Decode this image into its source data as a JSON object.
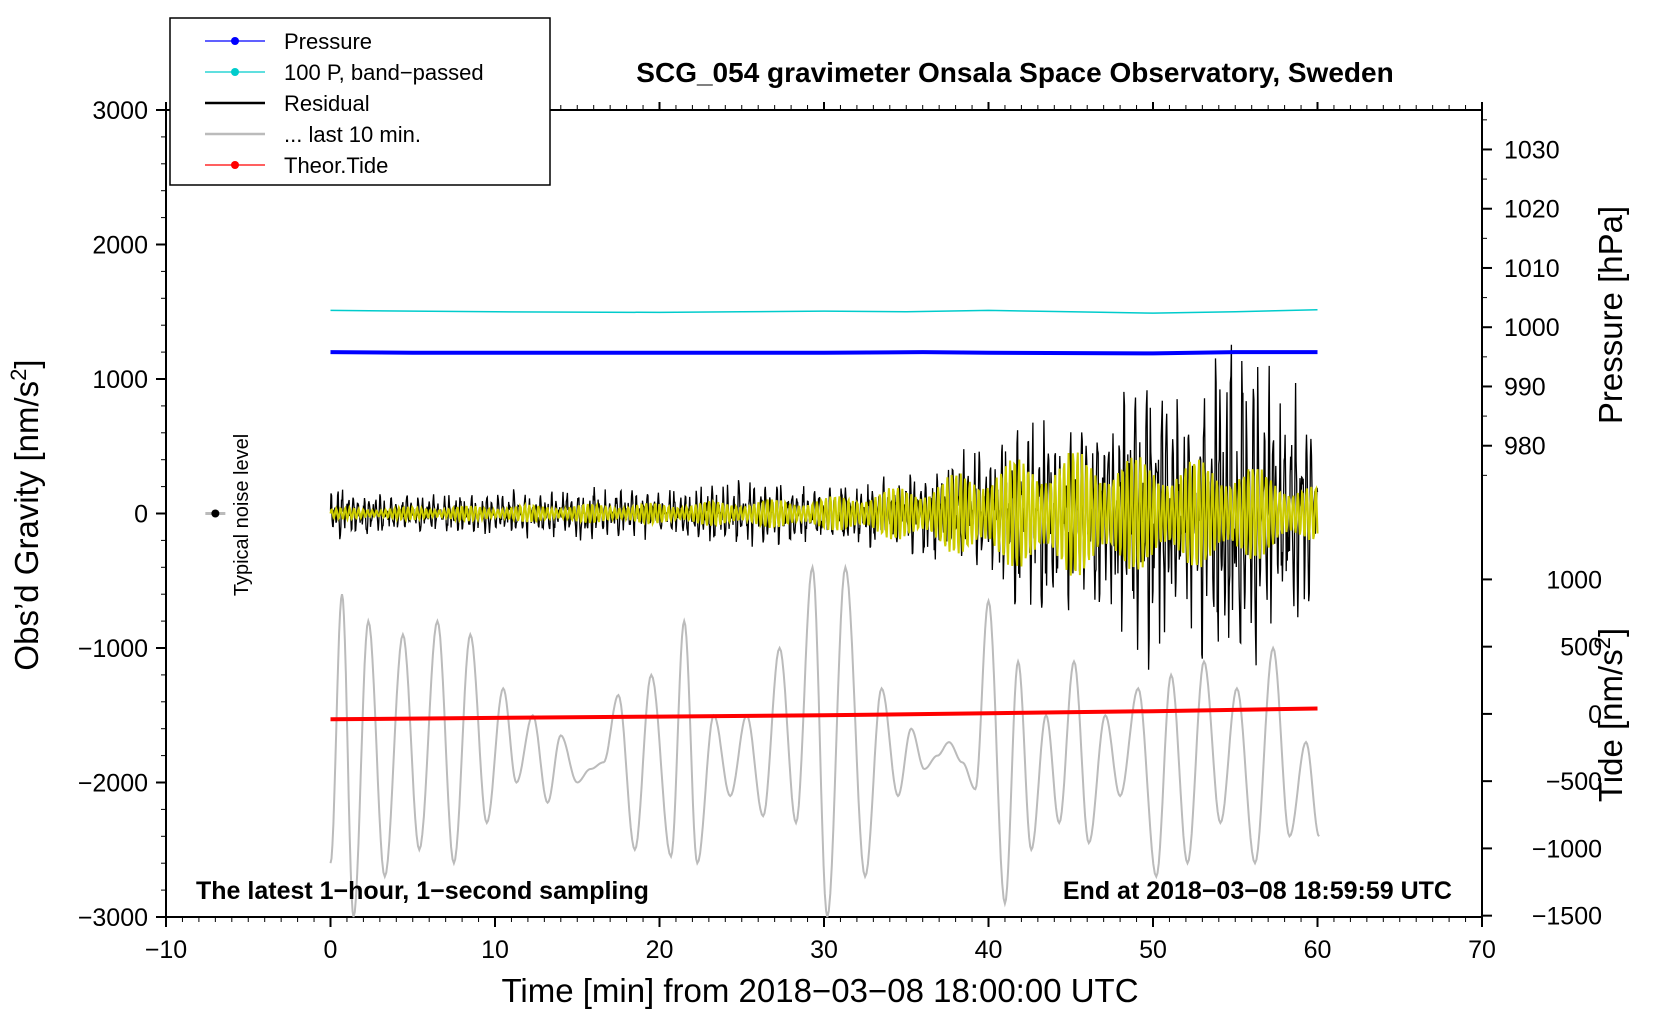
{
  "chart_data": {
    "type": "line",
    "title": "SCG_054 gravimeter Onsala Space Observatory, Sweden",
    "xlabel": "Time [min] from 2018−03−08 18:00:00 UTC",
    "ylabel_left": "Obs’d Gravity [nm/s",
    "ylabel_left_sup": "2",
    "ylabel_left_close": "]",
    "ylabel_right_pressure": "Pressure [hPa]",
    "ylabel_right_tide": "Tide [nm/s",
    "ylabel_right_tide_sup": "2",
    "ylabel_right_tide_close": "]",
    "xlim": [
      -10,
      70
    ],
    "ylim": [
      -3000,
      3000
    ],
    "x_ticks": [
      -10,
      0,
      10,
      20,
      30,
      40,
      50,
      60,
      70
    ],
    "x_tick_labels": [
      "−10",
      "0",
      "10",
      "20",
      "30",
      "40",
      "50",
      "60",
      "70"
    ],
    "y_ticks": [
      -3000,
      -2000,
      -1000,
      0,
      1000,
      2000,
      3000
    ],
    "y_tick_labels": [
      "−3000",
      "−2000",
      "−1000",
      "0",
      "1000",
      "2000",
      "3000"
    ],
    "pressure_axis": {
      "ticks": [
        980,
        990,
        1000,
        1010,
        1020,
        1030
      ],
      "tick_labels": [
        "980",
        "990",
        "1000",
        "1010",
        "1020",
        "1030"
      ],
      "hpa_per_100_grav": 2.27,
      "ref_hpa": 1000,
      "ref_grav": 1385
    },
    "tide_axis": {
      "ticks": [
        -1500,
        -1000,
        -500,
        0,
        500,
        1000
      ],
      "tick_labels": [
        "−1500",
        "−1000",
        "−500",
        "0",
        "500",
        "1000"
      ],
      "tide0_grav": -1490,
      "grav_per_tide": 1.0
    },
    "legend": [
      {
        "label": "Pressure",
        "color": "#0000ff",
        "marker": true
      },
      {
        "label": "100 P, band−passed",
        "color": "#00cccc",
        "marker": true
      },
      {
        "label": "Residual",
        "color": "#000000",
        "marker": false
      },
      {
        "label": "... last 10 min.",
        "color": "#bbbbbb",
        "marker": false
      },
      {
        "label": "Theor.Tide",
        "color": "#ff0000",
        "marker": true
      }
    ],
    "annotations": {
      "left": "The latest 1−hour, 1−second sampling",
      "right": "End at 2018−03−08 18:59:59 UTC",
      "noise_label": "Typical noise level"
    },
    "noise_marker": {
      "x": -7,
      "y": 0
    },
    "series": [
      {
        "name": "Pressure",
        "color": "#0000ff",
        "x": [
          0,
          5,
          10,
          20,
          30,
          36,
          40,
          50,
          55,
          60
        ],
        "y": [
          1200,
          1195,
          1195,
          1195,
          1195,
          1200,
          1195,
          1190,
          1200,
          1200
        ]
      },
      {
        "name": "100 P, band−passed",
        "color": "#00cccc",
        "x": [
          0,
          5,
          10,
          20,
          25,
          30,
          35,
          40,
          45,
          50,
          55,
          60
        ],
        "y": [
          1510,
          1505,
          1500,
          1495,
          1500,
          1505,
          1500,
          1510,
          1500,
          1490,
          1500,
          1515
        ]
      },
      {
        "name": "Theor.Tide",
        "color": "#ff0000",
        "x": [
          0,
          10,
          20,
          30,
          40,
          50,
          60
        ],
        "y": [
          -1530,
          -1520,
          -1510,
          -1500,
          -1485,
          -1470,
          -1450
        ]
      },
      {
        "name": "Residual",
        "color": "#000000",
        "x": [
          0,
          5,
          10,
          15,
          20,
          25,
          30,
          35,
          37,
          40,
          43,
          45,
          47,
          50,
          52,
          55,
          57,
          60
        ],
        "envelope": [
          180,
          130,
          150,
          190,
          160,
          240,
          210,
          260,
          380,
          500,
          780,
          620,
          750,
          1080,
          820,
          1400,
          1000,
          700
        ]
      },
      {
        "name": "band−passed residual",
        "color": "#cccc00",
        "x": [
          0,
          10,
          20,
          30,
          36,
          40,
          45,
          50,
          55,
          60
        ],
        "envelope": [
          40,
          60,
          80,
          120,
          230,
          380,
          480,
          420,
          400,
          200
        ]
      },
      {
        "name": "... last 10 min.",
        "color": "#bbbbbb",
        "x": [
          0,
          0.7,
          1.4,
          2.3,
          3.3,
          4.4,
          5.4,
          6.5,
          7.5,
          8.5,
          9.5,
          10.5,
          11.3,
          12.3,
          13.2,
          14.0,
          15.0,
          15.8,
          16.6,
          17.5,
          18.5,
          19.5,
          20.7,
          21.5,
          22.3,
          23.3,
          24.3,
          25.3,
          26.3,
          27.3,
          28.3,
          29.3,
          30.2,
          31.3,
          32.5,
          33.5,
          34.5,
          35.3,
          36.1,
          36.9,
          37.6,
          38.4,
          39.2,
          40.0,
          41.0,
          41.8,
          42.6,
          43.5,
          44.3,
          45.2,
          46.1,
          47.1,
          48.0,
          49.1,
          50.2,
          51.1,
          52.1,
          53.1,
          54.1,
          55.1,
          56.2,
          57.3,
          58.3,
          59.3,
          60.1
        ],
        "y": [
          -2600,
          -600,
          -3000,
          -800,
          -2700,
          -900,
          -2500,
          -800,
          -2600,
          -900,
          -2300,
          -1300,
          -2000,
          -1500,
          -2150,
          -1650,
          -2000,
          -1900,
          -1850,
          -1350,
          -2500,
          -1200,
          -2550,
          -800,
          -2600,
          -1500,
          -2100,
          -1500,
          -2250,
          -1000,
          -2300,
          -400,
          -3000,
          -400,
          -2700,
          -1300,
          -2100,
          -1600,
          -1900,
          -1800,
          -1700,
          -1850,
          -2050,
          -650,
          -2900,
          -1100,
          -2500,
          -1500,
          -2300,
          -1100,
          -2450,
          -1500,
          -2100,
          -1300,
          -2700,
          -1200,
          -2600,
          -1100,
          -2300,
          -1300,
          -2600,
          -1000,
          -2400,
          -1700,
          -2400
        ]
      }
    ]
  }
}
